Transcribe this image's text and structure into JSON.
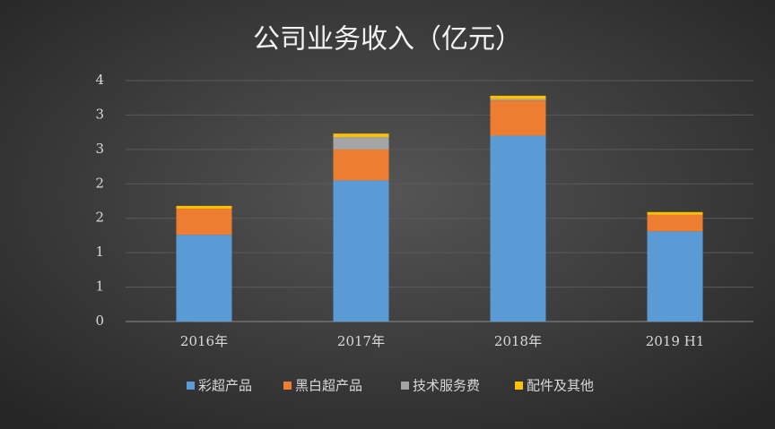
{
  "chart_data": {
    "type": "stacked_bar",
    "title": "公司业务收入（亿元）",
    "categories": [
      "2016年",
      "2017年",
      "2018年",
      "2019 H1"
    ],
    "series": [
      {
        "name": "彩超产品",
        "color": "#5b9bd5",
        "values": [
          1.26,
          2.05,
          2.7,
          1.31
        ]
      },
      {
        "name": "黑白超产品",
        "color": "#ed7d31",
        "values": [
          0.38,
          0.45,
          0.51,
          0.24
        ]
      },
      {
        "name": "技术服务费",
        "color": "#a5a5a5",
        "values": [
          0,
          0.18,
          0.02,
          0
        ]
      },
      {
        "name": "配件及其他",
        "color": "#ffc000",
        "values": [
          0.04,
          0.05,
          0.05,
          0.04
        ]
      }
    ],
    "ylim": [
      0,
      3.5
    ],
    "yticks": [
      {
        "value": 0,
        "label": "0"
      },
      {
        "value": 0.5,
        "label": "1"
      },
      {
        "value": 1,
        "label": "1"
      },
      {
        "value": 1.5,
        "label": "2"
      },
      {
        "value": 2,
        "label": "2"
      },
      {
        "value": 2.5,
        "label": "3"
      },
      {
        "value": 3,
        "label": "3"
      },
      {
        "value": 3.5,
        "label": "4"
      }
    ],
    "grid": true
  }
}
